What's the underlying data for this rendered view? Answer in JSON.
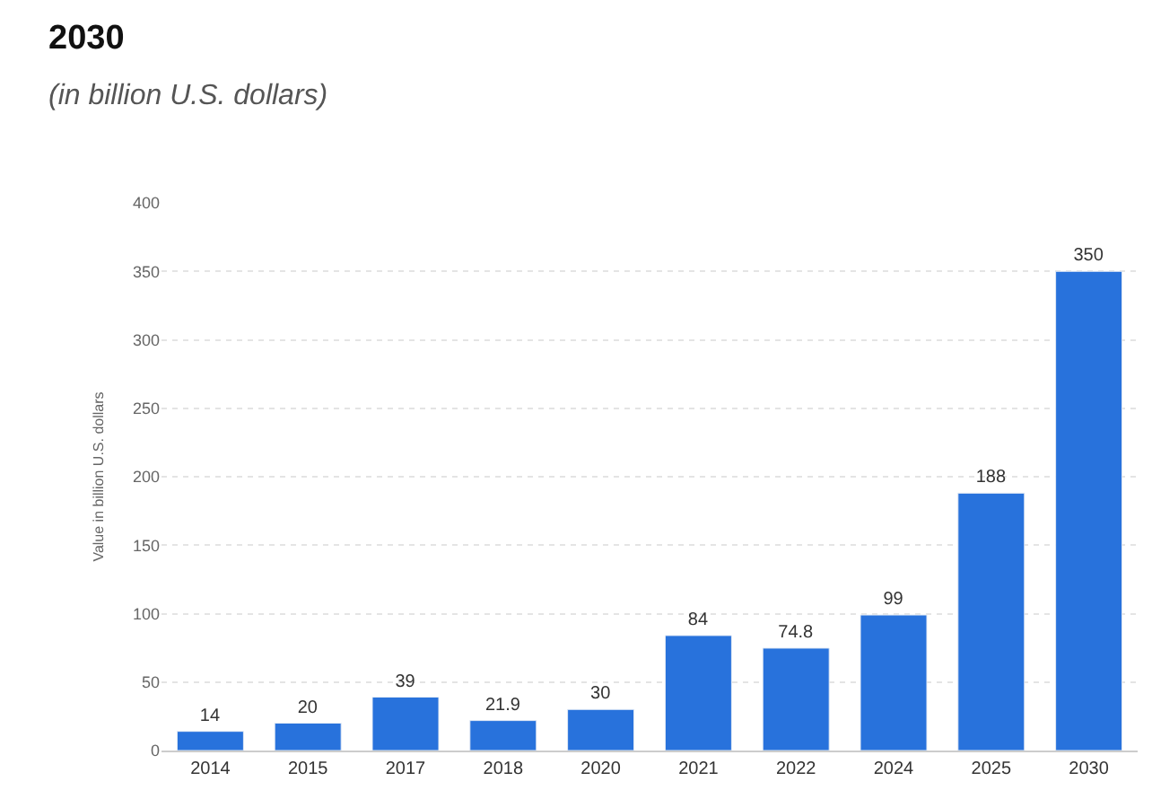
{
  "chart_data": {
    "type": "bar",
    "title": "2030",
    "subtitle": "(in billion U.S. dollars)",
    "ylabel": "Value in billion U.S. dollars",
    "categories": [
      "2014",
      "2015",
      "2017",
      "2018",
      "2020",
      "2021",
      "2022",
      "2024",
      "2025",
      "2030"
    ],
    "values": [
      14,
      20,
      39,
      21.9,
      30,
      84,
      74.8,
      99,
      188,
      350
    ],
    "color": "#2872dc",
    "ylim": [
      0,
      400
    ],
    "yticks": [
      0,
      50,
      100,
      150,
      200,
      250,
      300,
      350,
      400
    ],
    "grid": "y",
    "data_labels": true
  }
}
